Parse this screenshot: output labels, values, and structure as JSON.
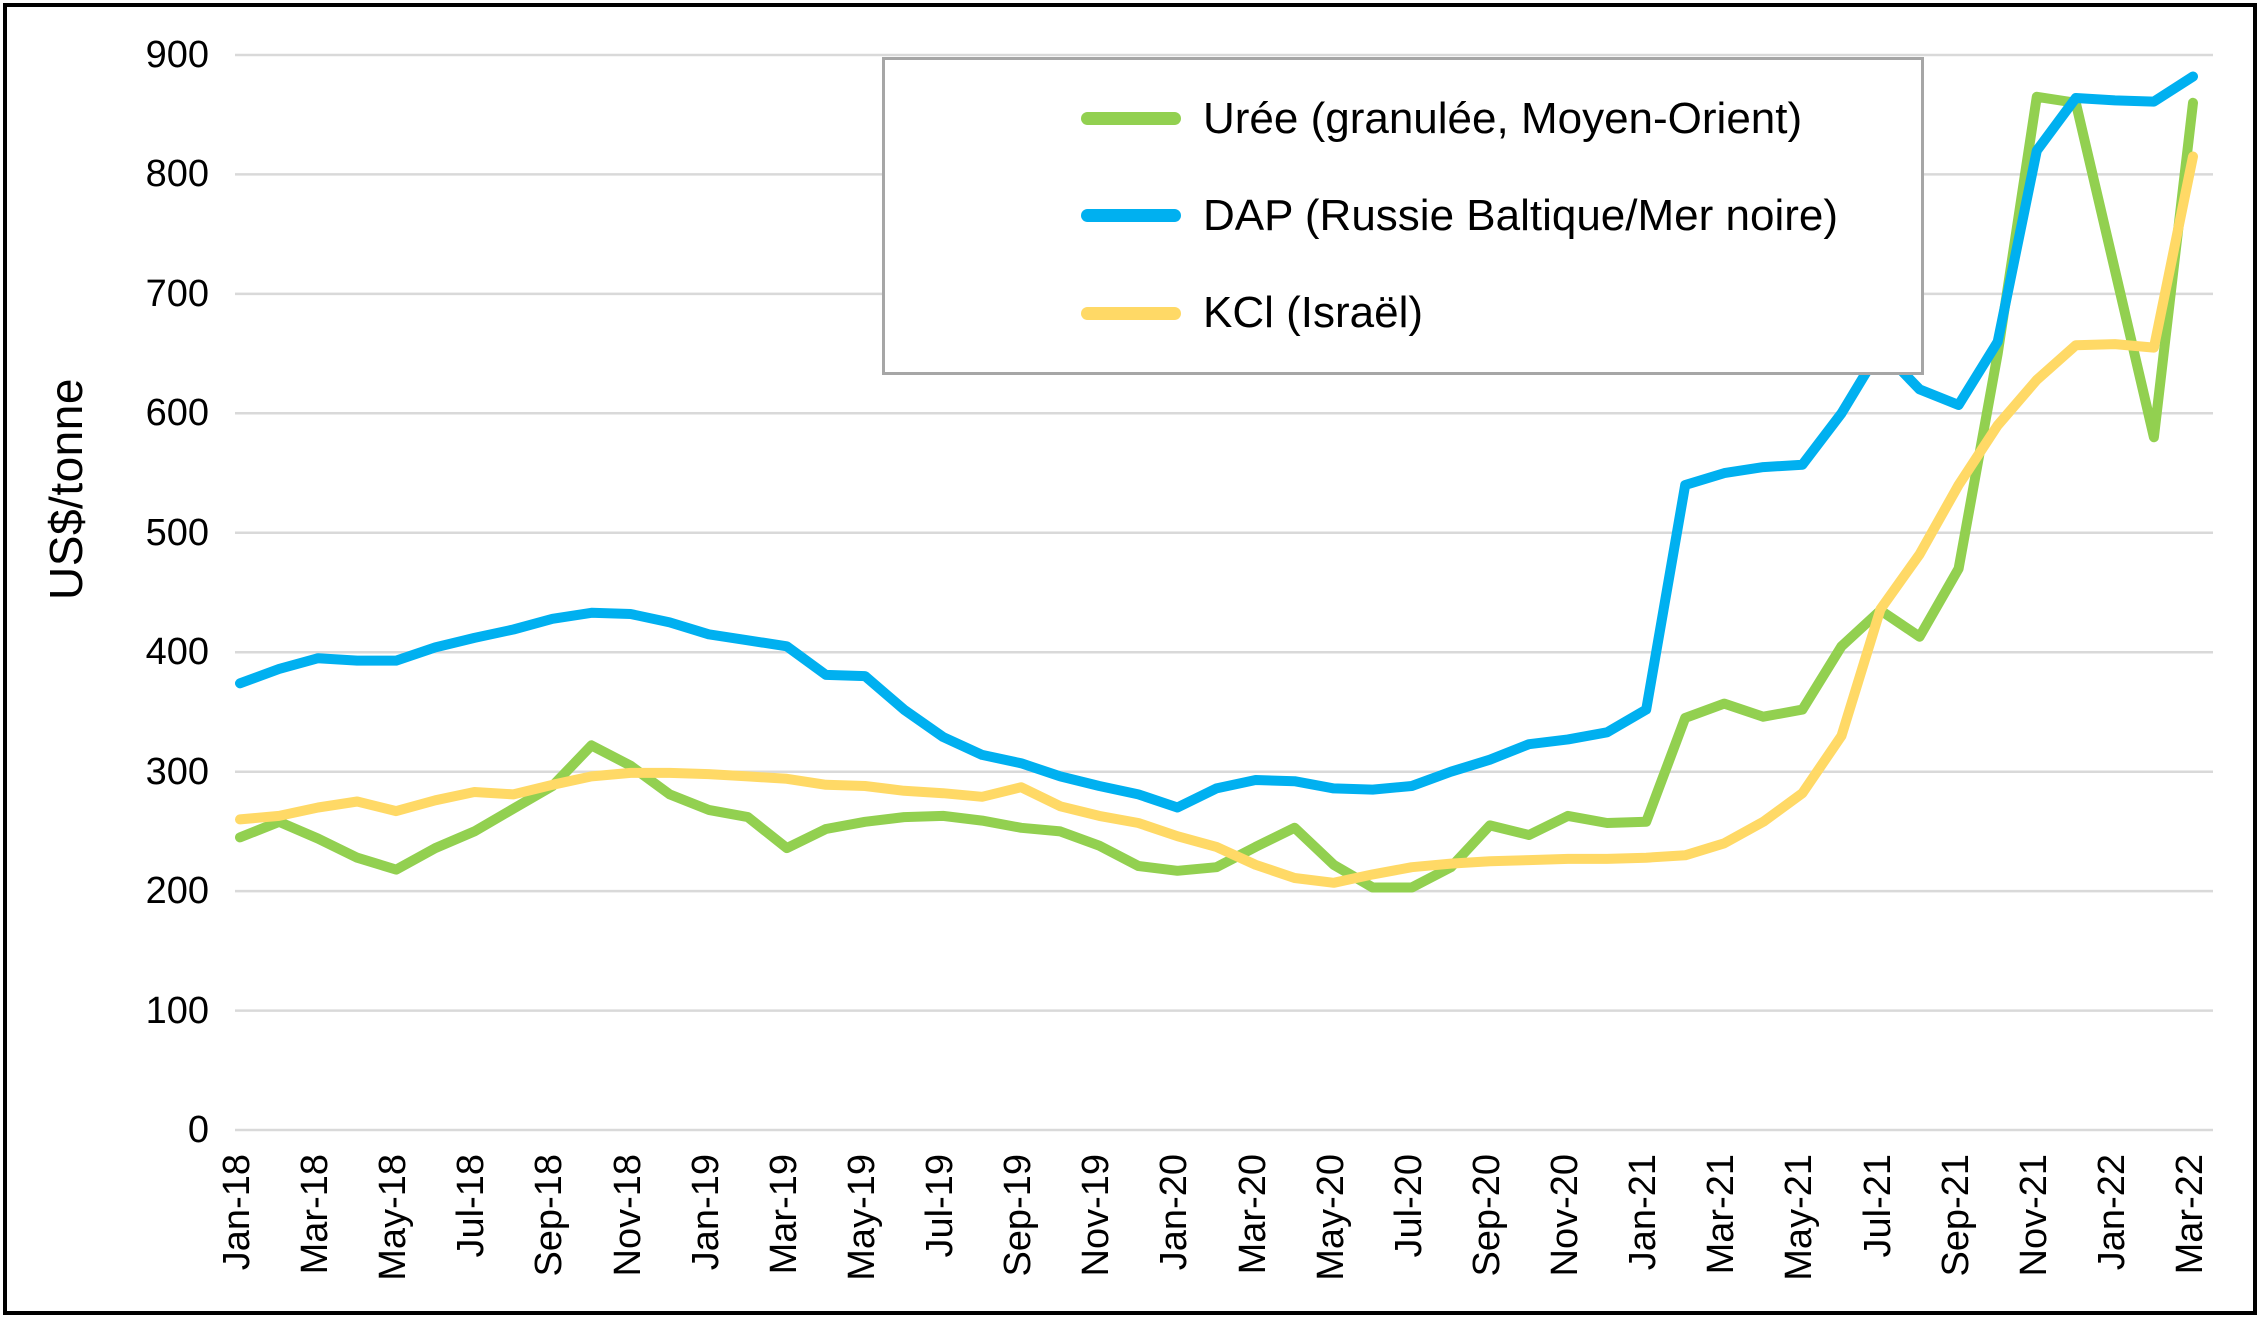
{
  "chart_data": {
    "type": "line",
    "title": "",
    "ylabel": "US$/tonne",
    "xlabel": "",
    "ylim": [
      0,
      900
    ],
    "y_ticks": [
      0,
      100,
      200,
      300,
      400,
      500,
      600,
      700,
      800,
      900
    ],
    "grid": "horizontal",
    "gridline_color": "#d9d9d9",
    "plot_border": "none",
    "legend_position": "top-right",
    "legend_border_color": "#a6a6a6",
    "x": [
      "Jan-18",
      "Feb-18",
      "Mar-18",
      "Apr-18",
      "May-18",
      "Jun-18",
      "Jul-18",
      "Aug-18",
      "Sep-18",
      "Oct-18",
      "Nov-18",
      "Dec-18",
      "Jan-19",
      "Feb-19",
      "Mar-19",
      "Apr-19",
      "May-19",
      "Jun-19",
      "Jul-19",
      "Aug-19",
      "Sep-19",
      "Oct-19",
      "Nov-19",
      "Dec-19",
      "Jan-20",
      "Feb-20",
      "Mar-20",
      "Apr-20",
      "May-20",
      "Jun-20",
      "Jul-20",
      "Aug-20",
      "Sep-20",
      "Oct-20",
      "Nov-20",
      "Dec-20",
      "Jan-21",
      "Feb-21",
      "Mar-21",
      "Apr-21",
      "May-21",
      "Jun-21",
      "Jul-21",
      "Aug-21",
      "Sep-21",
      "Oct-21",
      "Nov-21",
      "Dec-21",
      "Jan-22",
      "Feb-22",
      "Mar-22"
    ],
    "x_tick_labels": [
      "Jan-18",
      "Mar-18",
      "May-18",
      "Jul-18",
      "Sep-18",
      "Nov-18",
      "Jan-19",
      "Mar-19",
      "May-19",
      "Jul-19",
      "Sep-19",
      "Nov-19",
      "Jan-20",
      "Mar-20",
      "May-20",
      "Jul-20",
      "Sep-20",
      "Nov-20",
      "Jan-21",
      "Mar-21",
      "May-21",
      "Jul-21",
      "Sep-21",
      "Nov-21",
      "Jan-22",
      "Mar-22"
    ],
    "series": [
      {
        "name": "Urée (granulée, Moyen-Orient)",
        "color": "#92d050",
        "values": [
          245,
          258,
          244,
          228,
          218,
          236,
          250,
          269,
          288,
          322,
          305,
          281,
          268,
          262,
          236,
          252,
          258,
          262,
          263,
          259,
          253,
          250,
          238,
          221,
          217,
          220,
          237,
          253,
          222,
          203,
          203,
          220,
          255,
          247,
          263,
          257,
          258,
          345,
          357,
          346,
          352,
          405,
          435,
          413,
          470,
          650,
          865,
          860,
          720,
          580,
          860
        ]
      },
      {
        "name": "DAP (Russie Baltique/Mer noire)",
        "color": "#00b0f0",
        "values": [
          374,
          386,
          395,
          393,
          393,
          404,
          412,
          419,
          428,
          433,
          432,
          425,
          415,
          410,
          405,
          381,
          380,
          352,
          329,
          314,
          307,
          296,
          288,
          281,
          270,
          286,
          293,
          292,
          286,
          285,
          288,
          300,
          310,
          323,
          327,
          333,
          352,
          540,
          550,
          555,
          557,
          600,
          654,
          620,
          607,
          660,
          820,
          864,
          862,
          861,
          882
        ]
      },
      {
        "name": "KCl (Israël)",
        "color": "#ffd966",
        "values": [
          260,
          263,
          270,
          275,
          267,
          276,
          283,
          281,
          289,
          296,
          299,
          299,
          298,
          296,
          294,
          289,
          288,
          284,
          282,
          279,
          287,
          271,
          263,
          257,
          246,
          237,
          222,
          211,
          207,
          214,
          220,
          223,
          225,
          226,
          227,
          227,
          228,
          230,
          240,
          258,
          282,
          330,
          436,
          482,
          540,
          590,
          628,
          657,
          658,
          655,
          815
        ]
      }
    ]
  }
}
